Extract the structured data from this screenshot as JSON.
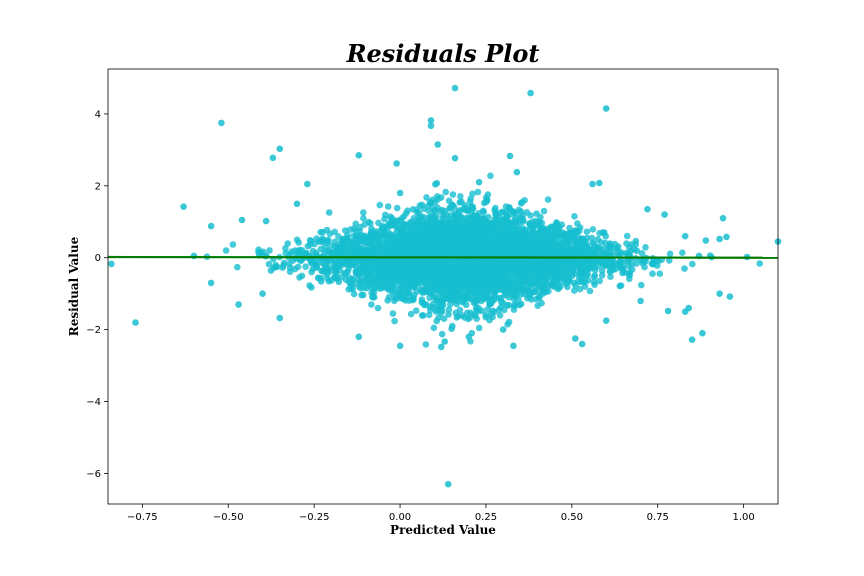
{
  "chart_data": {
    "type": "scatter",
    "title": "Residuals Plot",
    "xlabel": "Predicted Value",
    "ylabel": "Residual Value",
    "xlim": [
      -0.85,
      1.1
    ],
    "ylim": [
      -6.85,
      5.25
    ],
    "x_ticks": [
      -0.75,
      -0.5,
      -0.25,
      0.0,
      0.25,
      0.5,
      0.75,
      1.0
    ],
    "x_tick_labels": [
      "−0.75",
      "−0.50",
      "−0.25",
      "0.00",
      "0.25",
      "0.50",
      "0.75",
      "1.00"
    ],
    "y_ticks": [
      -6,
      -4,
      -2,
      0,
      2,
      4
    ],
    "y_tick_labels": [
      "−6",
      "−4",
      "−2",
      "0",
      "2",
      "4"
    ],
    "grid": false,
    "colors": {
      "points": "#17becf",
      "fit_line": "#007a00"
    },
    "fit_line": {
      "x": [
        -0.85,
        1.1
      ],
      "y": [
        0.02,
        0.0
      ]
    },
    "series": [
      {
        "points": [
          [
            0.16,
            4.72
          ],
          [
            0.38,
            4.58
          ],
          [
            0.6,
            4.15
          ],
          [
            -0.52,
            3.75
          ],
          [
            0.09,
            3.82
          ],
          [
            0.09,
            3.67
          ],
          [
            -0.35,
            3.03
          ],
          [
            -0.37,
            2.78
          ],
          [
            0.11,
            3.15
          ],
          [
            0.16,
            2.77
          ],
          [
            0.32,
            2.83
          ],
          [
            -0.12,
            2.85
          ],
          [
            -0.01,
            2.62
          ],
          [
            -0.27,
            2.05
          ],
          [
            0.56,
            2.05
          ],
          [
            0.58,
            2.08
          ],
          [
            0.23,
            2.1
          ],
          [
            0.34,
            2.38
          ],
          [
            -0.63,
            1.42
          ],
          [
            -0.55,
            0.88
          ],
          [
            -0.6,
            0.05
          ],
          [
            -0.55,
            -0.7
          ],
          [
            -0.46,
            1.05
          ],
          [
            -0.39,
            1.02
          ],
          [
            -0.84,
            -0.17
          ],
          [
            -0.77,
            -1.8
          ],
          [
            -0.47,
            -1.3
          ],
          [
            -0.35,
            -1.68
          ],
          [
            -0.12,
            -2.2
          ],
          [
            0.0,
            -2.45
          ],
          [
            0.12,
            -2.48
          ],
          [
            0.13,
            -2.33
          ],
          [
            0.2,
            -2.2
          ],
          [
            0.33,
            -2.45
          ],
          [
            0.51,
            -2.25
          ],
          [
            0.53,
            -2.4
          ],
          [
            0.6,
            -1.75
          ],
          [
            0.83,
            -1.5
          ],
          [
            0.85,
            -2.28
          ],
          [
            0.88,
            -2.1
          ],
          [
            0.93,
            -1.0
          ],
          [
            0.96,
            -1.08
          ],
          [
            0.84,
            -1.4
          ],
          [
            0.78,
            -1.48
          ],
          [
            0.87,
            0.05
          ],
          [
            0.83,
            0.6
          ],
          [
            0.89,
            0.48
          ],
          [
            0.93,
            0.52
          ],
          [
            0.95,
            0.58
          ],
          [
            0.94,
            1.1
          ],
          [
            1.01,
            0.02
          ],
          [
            1.1,
            0.45
          ],
          [
            0.14,
            -6.3
          ],
          [
            0.77,
            1.2
          ],
          [
            0.72,
            1.35
          ],
          [
            0.7,
            -1.2
          ],
          [
            -0.4,
            -1.0
          ],
          [
            -0.3,
            1.5
          ],
          [
            0.0,
            1.8
          ],
          [
            0.3,
            -2.0
          ]
        ]
      }
    ]
  }
}
